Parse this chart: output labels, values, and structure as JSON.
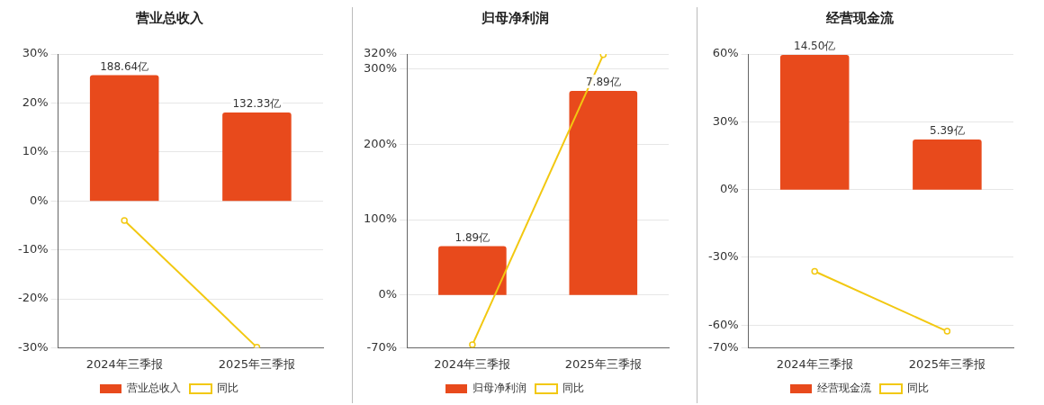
{
  "chart_data": [
    {
      "type": "bar",
      "title": "营业总收入",
      "categories": [
        "2024年三季报",
        "2025年三季报"
      ],
      "series": [
        {
          "name": "营业总收入",
          "axis": "y2",
          "color": "#e84a1c",
          "values": [
            188.64,
            132.33
          ],
          "value_labels": [
            "188.64亿",
            "132.33亿"
          ]
        },
        {
          "name": "同比",
          "type": "line",
          "axis": "y",
          "color": "#f2c811",
          "values": [
            -4,
            -29.9
          ]
        }
      ],
      "ylim": [
        -30,
        30
      ],
      "yticks": [
        {
          "value": -30,
          "label": "-30%"
        },
        {
          "value": -20,
          "label": "-20%"
        },
        {
          "value": -10,
          "label": "-10%"
        },
        {
          "value": 0,
          "label": "0%"
        },
        {
          "value": 10,
          "label": "10%"
        },
        {
          "value": 20,
          "label": "20%"
        },
        {
          "value": 30,
          "label": "30%"
        }
      ],
      "y2lim": [
        -220.2,
        220.2
      ],
      "tick_labels": "xy",
      "grid": "y",
      "legend": "bottom",
      "marker": "circle"
    },
    {
      "type": "bar",
      "title": "归母净利润",
      "categories": [
        "2024年三季报",
        "2025年三季报"
      ],
      "series": [
        {
          "name": "归母净利润",
          "axis": "y2",
          "color": "#e84a1c",
          "values": [
            1.89,
            7.89
          ],
          "value_labels": [
            "1.89亿",
            "7.89亿"
          ]
        },
        {
          "name": "同比",
          "type": "line",
          "axis": "y",
          "color": "#f2c811",
          "values": [
            -66,
            319
          ]
        }
      ],
      "ylim": [
        -70,
        320
      ],
      "yticks": [
        {
          "value": -70,
          "label": "-70%"
        },
        {
          "value": 0,
          "label": "0%"
        },
        {
          "value": 100,
          "label": "100%"
        },
        {
          "value": 200,
          "label": "200%"
        },
        {
          "value": 300,
          "label": "300%"
        },
        {
          "value": 320,
          "label": "320%"
        }
      ],
      "y2lim": [
        -2.04,
        9.32
      ],
      "tick_labels": "xy",
      "grid": "y",
      "legend": "bottom",
      "marker": "circle"
    },
    {
      "type": "bar",
      "title": "经营现金流",
      "categories": [
        "2024年三季报",
        "2025年三季报"
      ],
      "series": [
        {
          "name": "经营现金流",
          "axis": "y2",
          "color": "#e84a1c",
          "values": [
            14.5,
            5.39
          ],
          "value_labels": [
            "14.50亿",
            "5.39亿"
          ]
        },
        {
          "name": "同比",
          "type": "line",
          "axis": "y",
          "color": "#f2c811",
          "values": [
            -36.2,
            -62.7
          ]
        }
      ],
      "ylim": [
        -70,
        60
      ],
      "yticks": [
        {
          "value": -70,
          "label": "-70%"
        },
        {
          "value": -60,
          "label": "-60%"
        },
        {
          "value": -30,
          "label": "-30%"
        },
        {
          "value": 0,
          "label": "0%"
        },
        {
          "value": 30,
          "label": "30%"
        },
        {
          "value": 60,
          "label": "60%"
        }
      ],
      "y2lim": [
        -17.03,
        14.6
      ],
      "tick_labels": "xy",
      "grid": "y",
      "legend": "bottom",
      "marker": "circle"
    }
  ]
}
